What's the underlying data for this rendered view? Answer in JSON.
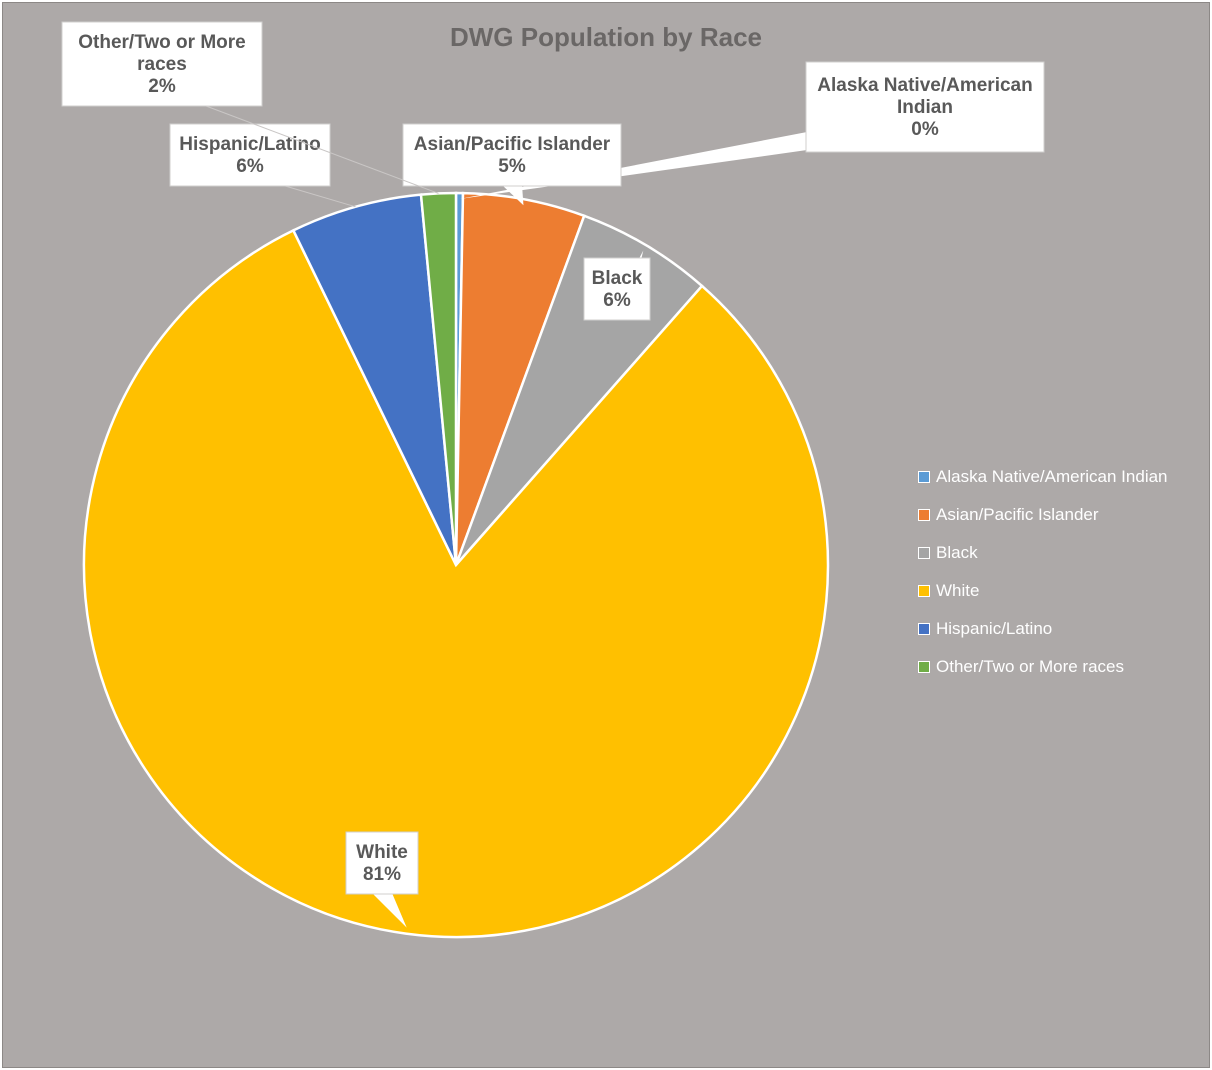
{
  "chart_data": {
    "type": "pie",
    "title": "DWG Population by Race",
    "categories": [
      "Alaska Native/American Indian",
      "Asian/Pacific Islander",
      "Black",
      "White",
      "Hispanic/Latino",
      "Other/Two or More races"
    ],
    "values": [
      0.3,
      5.3,
      5.9,
      81.3,
      5.7,
      1.5
    ],
    "data_labels": [
      {
        "lines": [
          "Alaska Native/American",
          "Indian"
        ],
        "pct": "0%"
      },
      {
        "lines": [
          "Asian/Pacific Islander"
        ],
        "pct": "5%"
      },
      {
        "lines": [
          "Black"
        ],
        "pct": "6%"
      },
      {
        "lines": [
          "White"
        ],
        "pct": "81%"
      },
      {
        "lines": [
          "Hispanic/Latino"
        ],
        "pct": "6%"
      },
      {
        "lines": [
          "Other/Two or More",
          "races"
        ],
        "pct": "2%"
      }
    ],
    "colors": [
      "#5b9bd5",
      "#ed7d31",
      "#a5a5a5",
      "#ffc000",
      "#4472c4",
      "#70ad47"
    ],
    "legend_position": "right",
    "background_color": "#ada9a8"
  }
}
